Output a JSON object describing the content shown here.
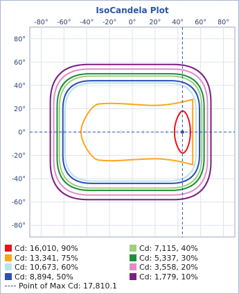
{
  "chart_data": {
    "type": "contour",
    "title": "IsoCandela Plot",
    "x_ticks": [
      "-80°",
      "-60°",
      "-40°",
      "-20°",
      "0°",
      "20°",
      "40°",
      "60°",
      "80°"
    ],
    "x_tick_values": [
      -80,
      -60,
      -40,
      -20,
      0,
      20,
      40,
      60,
      80
    ],
    "y_ticks": [
      "80°",
      "60°",
      "40°",
      "20°",
      "0°",
      "-20°",
      "-40°",
      "-60°",
      "-80°"
    ],
    "y_tick_values": [
      80,
      60,
      40,
      20,
      0,
      -20,
      -40,
      -60,
      -80
    ],
    "xlim": [
      -90,
      90
    ],
    "ylim": [
      -90,
      90
    ],
    "grid": true,
    "legend_placement": "bottom",
    "max_point": {
      "x": 44,
      "y": 0,
      "label": "Point of Max Cd: 17,810.1"
    },
    "series": [
      {
        "name": "Cd: 16,010, 90%",
        "color": "#e8141c",
        "shape": "lens",
        "x_min": 37,
        "x_max": 51,
        "y_half": 18
      },
      {
        "name": "Cd: 13,341, 75%",
        "color": "#ffa51a",
        "shape": "wing",
        "x_min": -45,
        "x_max": 53,
        "y_half": 28
      },
      {
        "name": "Cd: 10,673, 60%",
        "color": "#b8e4ef",
        "shape": "rect",
        "x_min": -59,
        "x_max": 56,
        "y_half": 42
      },
      {
        "name": "Cd: 8,894, 50%",
        "color": "#2e4fb4",
        "shape": "rect",
        "x_min": -61,
        "x_max": 59,
        "y_half": 44
      },
      {
        "name": "Cd: 7,115, 40%",
        "color": "#9dd07a",
        "shape": "rect",
        "x_min": -64,
        "x_max": 61,
        "y_half": 48
      },
      {
        "name": "Cd: 5,337, 30%",
        "color": "#1c8f3a",
        "shape": "rect",
        "x_min": -66,
        "x_max": 63,
        "y_half": 50
      },
      {
        "name": "Cd: 3,558, 20%",
        "color": "#e08ec7",
        "shape": "rect",
        "x_min": -69,
        "x_max": 66,
        "y_half": 54
      },
      {
        "name": "Cd: 1,779, 10%",
        "color": "#7a1f82",
        "shape": "rect",
        "x_min": -72,
        "x_max": 69,
        "y_half": 58
      }
    ]
  }
}
